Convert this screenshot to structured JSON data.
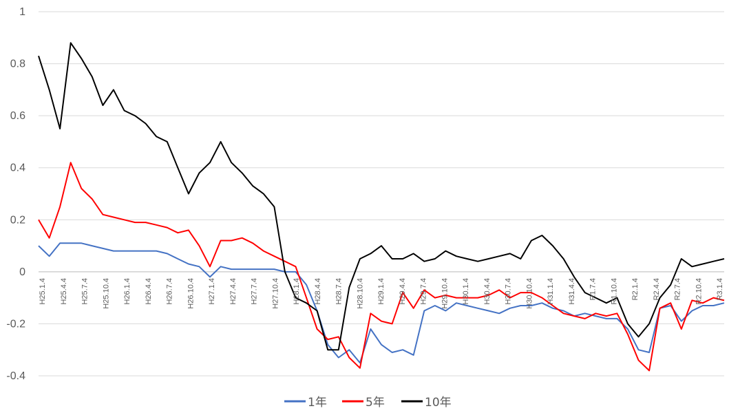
{
  "chart_data": {
    "type": "line",
    "title": "",
    "xlabel": "",
    "ylabel": "",
    "ylim": [
      -0.4,
      1
    ],
    "y_ticks": [
      "1",
      "0.8",
      "0.6",
      "0.4",
      "0.2",
      "0",
      "-0.2",
      "-0.4"
    ],
    "grid": true,
    "legend_position": "bottom",
    "x_ticks": [
      "H25.1.4",
      "H25.4.4",
      "H25.7.4",
      "H25.10.4",
      "H26.1.4",
      "H26.4.4",
      "H26.7.4",
      "H26.10.4",
      "H27.1.4",
      "H27.4.4",
      "H27.7.4",
      "H27.10.4",
      "H28.1.4",
      "H28.4.4",
      "H28.7.4",
      "H28.10.4",
      "H29.1.4",
      "H29.4.4",
      "H29.7.4",
      "H29.10.4",
      "H30.1.4",
      "H30.4.4",
      "H30.7.4",
      "H30.10.4",
      "H31.1.4",
      "H31.4.4",
      "R1.7.4",
      "R1.10.4",
      "R2.1.4",
      "R2.4.4",
      "R2.7.4",
      "R2.10.4",
      "R3.1.4"
    ],
    "x_values": [
      0,
      0.5,
      1,
      1.5,
      2,
      2.5,
      3,
      3.5,
      4,
      4.5,
      5,
      5.5,
      6,
      6.5,
      7,
      7.5,
      8,
      8.5,
      9,
      9.5,
      10,
      10.5,
      11,
      11.5,
      12,
      12.5,
      13,
      13.5,
      14,
      14.5,
      15,
      15.5,
      16,
      16.5,
      17,
      17.5,
      18,
      18.5,
      19,
      19.5,
      20,
      20.5,
      21,
      21.5,
      22,
      22.5,
      23,
      23.5,
      24,
      24.5,
      25,
      25.5,
      26,
      26.5,
      27,
      27.5,
      28,
      28.5,
      29,
      29.5,
      30,
      30.5,
      31,
      31.5,
      32
    ],
    "series": [
      {
        "name": "1年",
        "color": "#4472C4",
        "values": [
          0.1,
          0.06,
          0.11,
          0.11,
          0.11,
          0.1,
          0.09,
          0.08,
          0.08,
          0.08,
          0.08,
          0.08,
          0.07,
          0.05,
          0.03,
          0.02,
          -0.02,
          0.02,
          0.01,
          0.01,
          0.01,
          0.01,
          0.01,
          0.0,
          0.0,
          -0.05,
          -0.15,
          -0.28,
          -0.33,
          -0.3,
          -0.35,
          -0.22,
          -0.28,
          -0.31,
          -0.3,
          -0.32,
          -0.15,
          -0.13,
          -0.15,
          -0.12,
          -0.13,
          -0.14,
          -0.15,
          -0.16,
          -0.14,
          -0.13,
          -0.13,
          -0.12,
          -0.14,
          -0.15,
          -0.17,
          -0.16,
          -0.17,
          -0.18,
          -0.18,
          -0.22,
          -0.3,
          -0.31,
          -0.14,
          -0.13,
          -0.19,
          -0.15,
          -0.13,
          -0.13,
          -0.12
        ]
      },
      {
        "name": "5年",
        "color": "#FF0000",
        "values": [
          0.2,
          0.13,
          0.25,
          0.42,
          0.32,
          0.28,
          0.22,
          0.21,
          0.2,
          0.19,
          0.19,
          0.18,
          0.17,
          0.15,
          0.16,
          0.1,
          0.02,
          0.12,
          0.12,
          0.13,
          0.11,
          0.08,
          0.06,
          0.04,
          0.02,
          -0.1,
          -0.22,
          -0.26,
          -0.25,
          -0.33,
          -0.37,
          -0.16,
          -0.19,
          -0.2,
          -0.08,
          -0.14,
          -0.07,
          -0.1,
          -0.09,
          -0.1,
          -0.1,
          -0.1,
          -0.09,
          -0.07,
          -0.1,
          -0.08,
          -0.08,
          -0.1,
          -0.13,
          -0.16,
          -0.17,
          -0.18,
          -0.16,
          -0.17,
          -0.16,
          -0.24,
          -0.34,
          -0.38,
          -0.14,
          -0.12,
          -0.22,
          -0.11,
          -0.12,
          -0.1,
          -0.11
        ]
      },
      {
        "name": "10年",
        "color": "#000000",
        "values": [
          0.83,
          0.7,
          0.55,
          0.88,
          0.82,
          0.75,
          0.64,
          0.7,
          0.62,
          0.6,
          0.57,
          0.52,
          0.5,
          0.4,
          0.3,
          0.38,
          0.42,
          0.5,
          0.42,
          0.38,
          0.33,
          0.3,
          0.25,
          0.0,
          -0.1,
          -0.12,
          -0.15,
          -0.3,
          -0.3,
          -0.06,
          0.05,
          0.07,
          0.1,
          0.05,
          0.05,
          0.07,
          0.04,
          0.05,
          0.08,
          0.06,
          0.05,
          0.04,
          0.05,
          0.06,
          0.07,
          0.05,
          0.12,
          0.14,
          0.1,
          0.05,
          -0.02,
          -0.08,
          -0.1,
          -0.12,
          -0.1,
          -0.2,
          -0.25,
          -0.2,
          -0.1,
          -0.05,
          0.05,
          0.02,
          0.03,
          0.04,
          0.05
        ]
      }
    ]
  }
}
